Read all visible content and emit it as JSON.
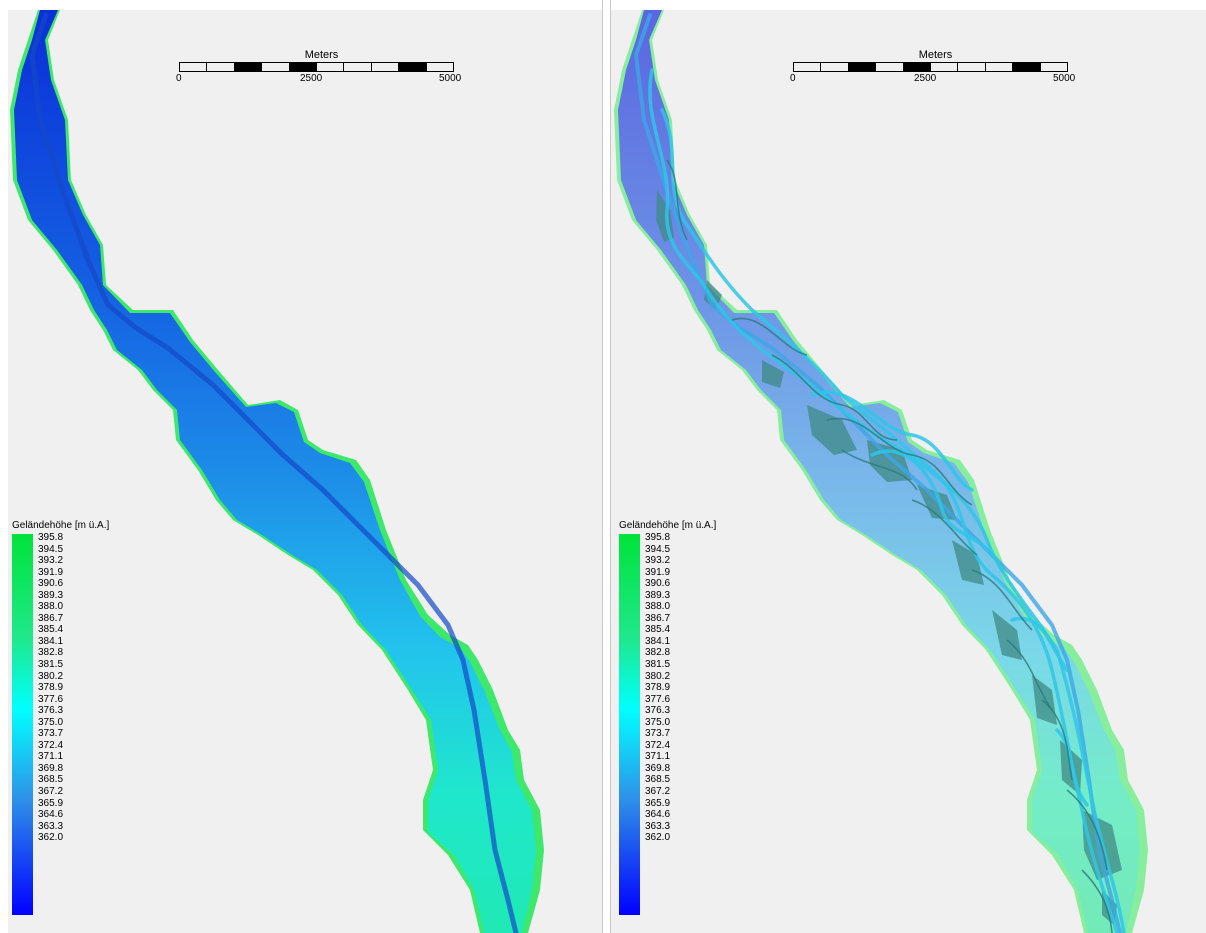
{
  "panels": [
    {
      "id": "left",
      "scale_bar": {
        "unit": "Meters",
        "ticks": [
          "0",
          "2500",
          "5000"
        ]
      },
      "legend": {
        "title": "Geländehöhe [m ü.A.]",
        "values": [
          "395.8",
          "394.5",
          "393.2",
          "391.9",
          "390.6",
          "389.3",
          "388.0",
          "386.7",
          "385.4",
          "384.1",
          "382.8",
          "381.5",
          "380.2",
          "378.9",
          "377.6",
          "376.3",
          "375.0",
          "373.7",
          "372.4",
          "371.1",
          "369.8",
          "368.5",
          "367.2",
          "365.9",
          "364.6",
          "363.3",
          "362.0"
        ],
        "colors": {
          "max": "#00e33a",
          "mid": "#00ffff",
          "min": "#0000ff"
        }
      },
      "overlay_channels": false
    },
    {
      "id": "right",
      "scale_bar": {
        "unit": "Meters",
        "ticks": [
          "0",
          "2500",
          "5000"
        ]
      },
      "legend": {
        "title": "Geländehöhe [m ü.A.]",
        "values": [
          "395.8",
          "394.5",
          "393.2",
          "391.9",
          "390.6",
          "389.3",
          "388.0",
          "386.7",
          "385.4",
          "384.1",
          "382.8",
          "381.5",
          "380.2",
          "378.9",
          "377.6",
          "376.3",
          "375.0",
          "373.7",
          "372.4",
          "371.1",
          "369.8",
          "368.5",
          "367.2",
          "365.9",
          "364.6",
          "363.3",
          "362.0"
        ],
        "colors": {
          "max": "#00e33a",
          "mid": "#00ffff",
          "min": "#0000ff"
        }
      },
      "overlay_channels": true
    }
  ]
}
